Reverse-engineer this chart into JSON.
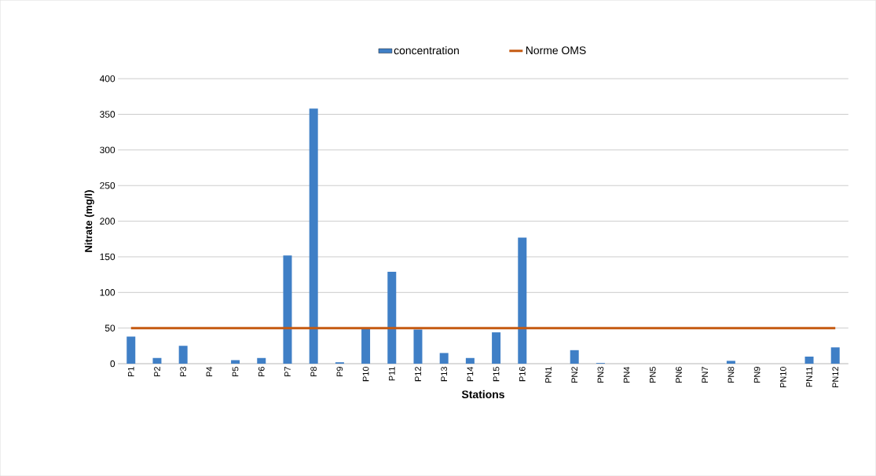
{
  "chart_data": {
    "type": "bar",
    "xlabel": "Stations",
    "ylabel": "Nitrate (mg/l)",
    "categories": [
      "P1",
      "P2",
      "P3",
      "P4",
      "P5",
      "P6",
      "P7",
      "P8",
      "P9",
      "P10",
      "P11",
      "P12",
      "P13",
      "P14",
      "P15",
      "P16",
      "PN1",
      "PN2",
      "PN3",
      "PN4",
      "PN5",
      "PN6",
      "PN7",
      "PN8",
      "PN9",
      "PN10",
      "PN11",
      "PN12"
    ],
    "series": [
      {
        "name": "concentration",
        "color": "#3f7fc6",
        "values": [
          38,
          8,
          25,
          0,
          5,
          8,
          152,
          358,
          2,
          49,
          129,
          48,
          15,
          8,
          44,
          177,
          0,
          19,
          1,
          0,
          0,
          0,
          0,
          4,
          0,
          0,
          10,
          23
        ]
      },
      {
        "name": "Norme OMS",
        "type": "line",
        "color": "#c55a11",
        "values": [
          50,
          50,
          50,
          50,
          50,
          50,
          50,
          50,
          50,
          50,
          50,
          50,
          50,
          50,
          50,
          50,
          50,
          50,
          50,
          50,
          50,
          50,
          50,
          50,
          50,
          50,
          50,
          50
        ]
      }
    ],
    "ylim": [
      0,
      400
    ],
    "yticks": [
      0,
      50,
      100,
      150,
      200,
      250,
      300,
      350,
      400
    ],
    "grid": "y",
    "legend": "top"
  }
}
